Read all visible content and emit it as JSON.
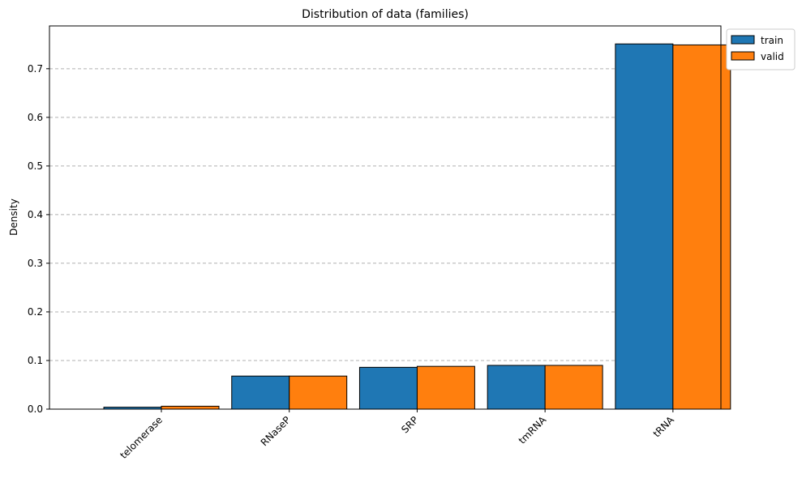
{
  "chart_data": {
    "type": "bar",
    "title": "Distribution of data (families)",
    "xlabel": "",
    "ylabel": "Density",
    "categories": [
      "telomerase",
      "RNaseP",
      "SRP",
      "tmRNA",
      "tRNA"
    ],
    "series": [
      {
        "name": "train",
        "color": "#1f77b4",
        "values": [
          0.004,
          0.068,
          0.086,
          0.09,
          0.751
        ]
      },
      {
        "name": "valid",
        "color": "#ff7f0e",
        "values": [
          0.006,
          0.068,
          0.088,
          0.09,
          0.749
        ]
      }
    ],
    "ylim": [
      0,
      0.788
    ],
    "yticks": [
      "0.0",
      "0.1",
      "0.2",
      "0.3",
      "0.4",
      "0.5",
      "0.6",
      "0.7"
    ],
    "grid": "y-dashed",
    "legend": "outside-top-right"
  }
}
